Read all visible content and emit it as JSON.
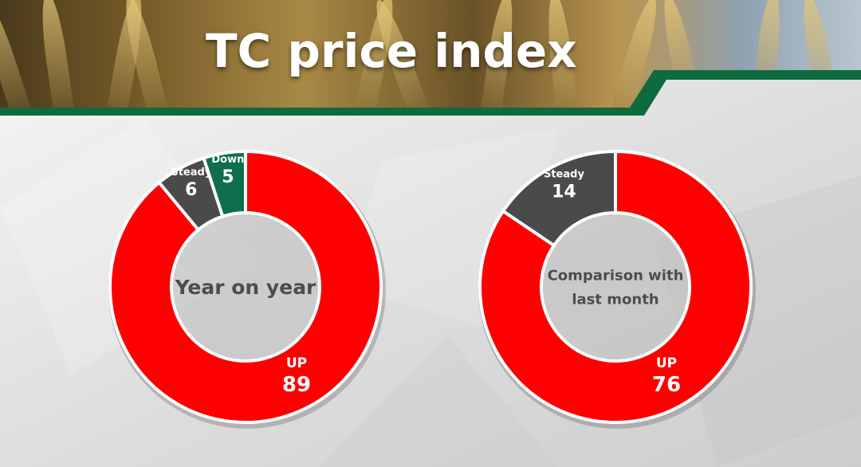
{
  "title": "TC price index",
  "colors": {
    "up": "#ff0000",
    "steady": "#4a4a4a",
    "down": "#0f6e4c",
    "accent_bar": "#0d6b3f"
  },
  "chart_data": [
    {
      "type": "pie",
      "title": "Year on year",
      "title_lines": [
        "Year on year"
      ],
      "categories": [
        "UP",
        "Steady",
        "Down"
      ],
      "values": [
        89,
        6,
        5
      ]
    },
    {
      "type": "pie",
      "title": "Comparison with last month",
      "title_lines": [
        "Comparison with",
        "last month"
      ],
      "categories": [
        "UP",
        "Steady"
      ],
      "values": [
        76,
        14
      ]
    }
  ]
}
